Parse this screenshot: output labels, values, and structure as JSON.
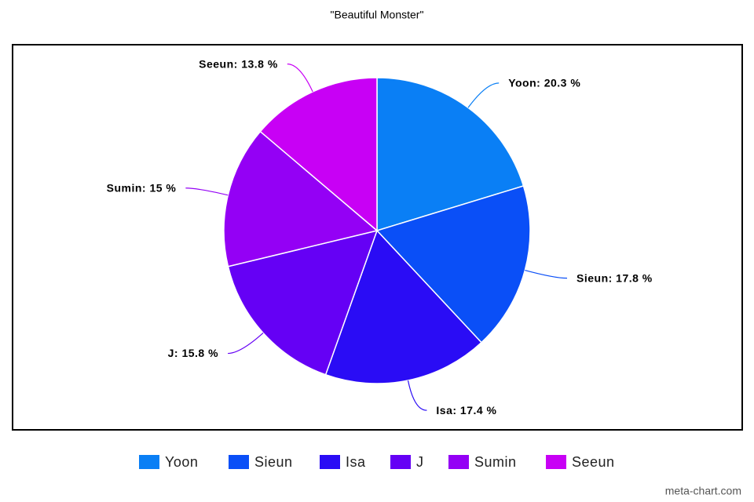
{
  "chart_data": {
    "type": "pie",
    "title": "\"Beautiful Monster\"",
    "categories": [
      "Yoon",
      "Sieun",
      "Isa",
      "J",
      "Sumin",
      "Seeun"
    ],
    "values": [
      20.3,
      17.8,
      17.4,
      15.8,
      15,
      13.8
    ],
    "value_labels": [
      "Yoon: 20.3 %",
      "Sieun: 17.8 %",
      "Isa: 17.4 %",
      "J: 15.8 %",
      "Sumin: 15 %",
      "Seeun: 13.8 %"
    ],
    "colors": [
      "#0a7ff5",
      "#0a4ff7",
      "#2a0cf5",
      "#6500f5",
      "#9400f5",
      "#c800f5"
    ],
    "legend": "bottom",
    "credit": "meta-chart.com"
  }
}
